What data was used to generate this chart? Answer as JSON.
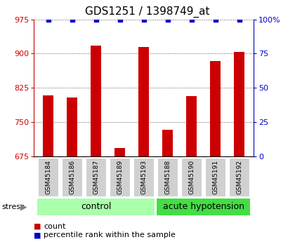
{
  "title": "GDS1251 / 1398749_at",
  "samples": [
    "GSM45184",
    "GSM45186",
    "GSM45187",
    "GSM45189",
    "GSM45193",
    "GSM45188",
    "GSM45190",
    "GSM45191",
    "GSM45192"
  ],
  "counts": [
    808,
    804,
    917,
    693,
    915,
    733,
    806,
    883,
    903
  ],
  "percentiles": [
    100,
    100,
    100,
    100,
    100,
    100,
    100,
    100,
    100
  ],
  "groups": [
    {
      "label": "control",
      "start": 0,
      "end": 4,
      "color": "#aaffaa"
    },
    {
      "label": "acute hypotension",
      "start": 5,
      "end": 8,
      "color": "#44dd44"
    }
  ],
  "ylim_left": [
    675,
    975
  ],
  "yticks_left": [
    675,
    750,
    825,
    900,
    975
  ],
  "ylim_right": [
    0,
    100
  ],
  "yticks_right": [
    0,
    25,
    50,
    75,
    100
  ],
  "bar_color": "#cc0000",
  "dot_color": "#0000cc",
  "bar_width": 0.45,
  "stress_label": "stress",
  "legend_count_label": "count",
  "legend_pct_label": "percentile rank within the sample",
  "title_fontsize": 11,
  "tick_fontsize": 8,
  "label_fontsize": 8,
  "group_label_fontsize": 9,
  "background_color": "#ffffff",
  "sample_box_color": "#d0d0d0",
  "grid_color": "#555555"
}
